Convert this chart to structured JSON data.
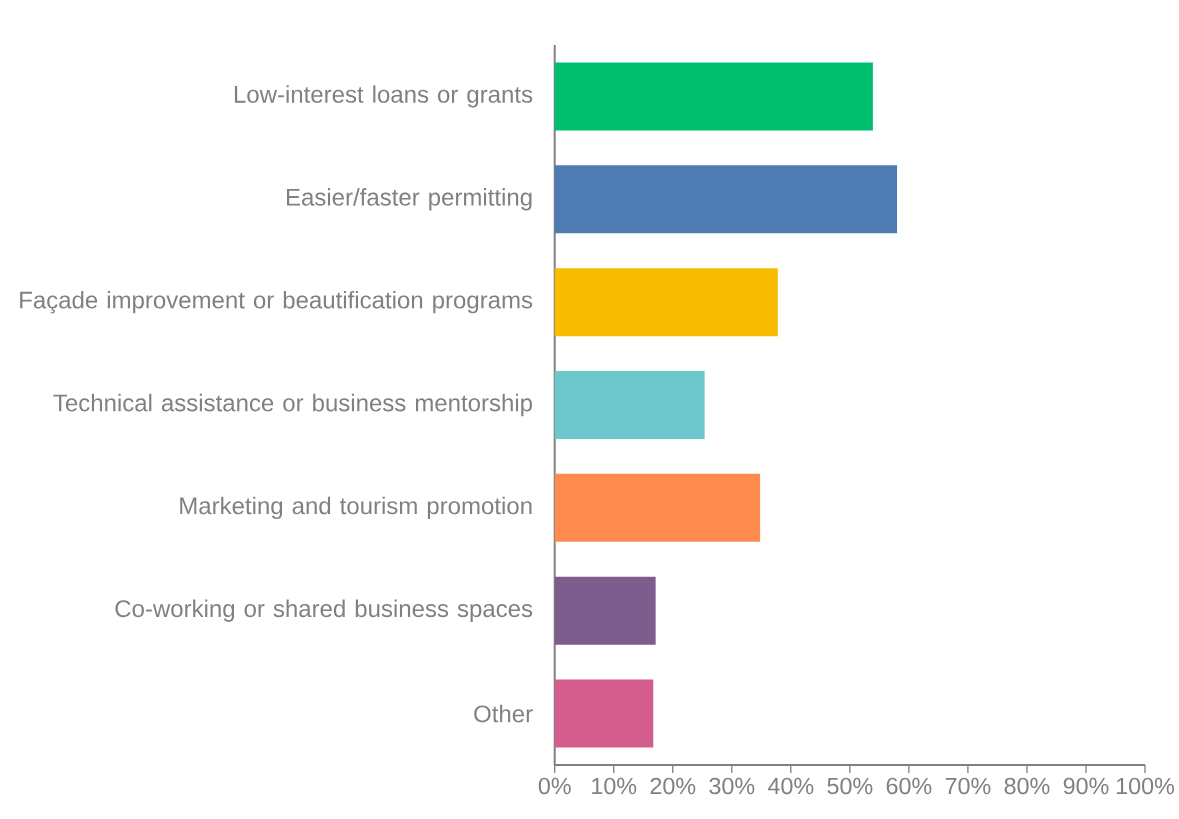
{
  "chart_data": {
    "type": "bar",
    "orientation": "horizontal",
    "categories": [
      "Low-interest loans or grants",
      "Easier/faster permitting",
      "Façade improvement or beautification programs",
      "Technical assistance or business mentorship",
      "Marketing and tourism promotion",
      "Co-working or shared business spaces",
      "Other"
    ],
    "values": [
      53.9,
      58,
      37.8,
      25.4,
      34.8,
      17.1,
      16.7
    ],
    "colors": [
      "#00bf6f",
      "#4e7bb4",
      "#f8bd00",
      "#6cc8cc",
      "#ff8b4f",
      "#7d5c8e",
      "#d35e8e"
    ],
    "xlim": [
      0,
      100
    ],
    "xticks": [
      {
        "value": 0,
        "label": "0%"
      },
      {
        "value": 10,
        "label": "10%"
      },
      {
        "value": 20,
        "label": "20%"
      },
      {
        "value": 30,
        "label": "30%"
      },
      {
        "value": 40,
        "label": "40%"
      },
      {
        "value": 50,
        "label": "50%"
      },
      {
        "value": 60,
        "label": "60%"
      },
      {
        "value": 70,
        "label": "70%"
      },
      {
        "value": 80,
        "label": "80%"
      },
      {
        "value": 90,
        "label": "90%"
      },
      {
        "value": 100,
        "label": "100%"
      }
    ]
  }
}
